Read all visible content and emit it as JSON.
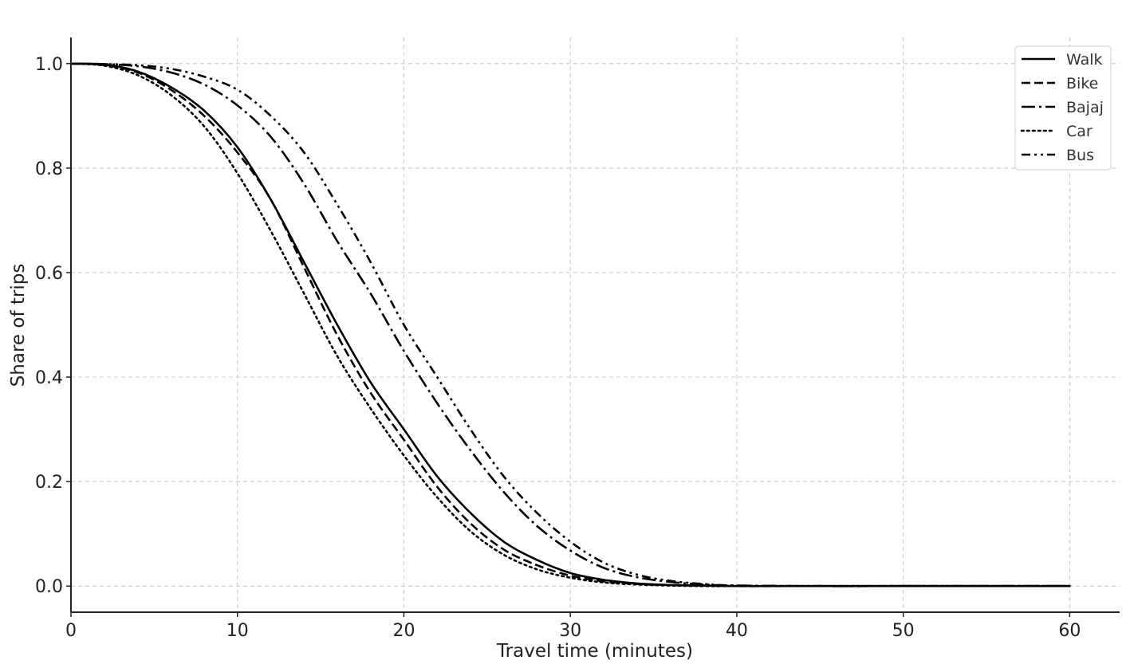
{
  "chart_data": {
    "type": "line",
    "title": "",
    "xlabel": "Travel time (minutes)",
    "ylabel": "Share of trips",
    "xlim": [
      0,
      63
    ],
    "ylim": [
      -0.05,
      1.05
    ],
    "x_ticks": [
      0,
      10,
      20,
      30,
      40,
      50,
      60
    ],
    "y_ticks": [
      0.0,
      0.2,
      0.4,
      0.6,
      0.8,
      1.0
    ],
    "x_tick_labels": [
      "0",
      "10",
      "20",
      "30",
      "40",
      "50",
      "60"
    ],
    "y_tick_labels": [
      "0.0",
      "0.2",
      "0.4",
      "0.6",
      "0.8",
      "1.0"
    ],
    "grid": true,
    "legend_position": "top-right",
    "x": [
      0,
      2,
      4,
      6,
      8,
      10,
      12,
      14,
      16,
      18,
      20,
      22,
      24,
      26,
      28,
      30,
      32,
      34,
      36,
      38,
      40,
      45,
      50,
      55,
      60
    ],
    "series": [
      {
        "name": "Walk",
        "style": "solid",
        "values": [
          1.0,
          0.998,
          0.985,
          0.955,
          0.91,
          0.84,
          0.74,
          0.62,
          0.5,
          0.39,
          0.3,
          0.21,
          0.14,
          0.085,
          0.05,
          0.025,
          0.012,
          0.005,
          0.002,
          0.001,
          0.0,
          0.0,
          0.0,
          0.0,
          0.0
        ]
      },
      {
        "name": "Bike",
        "style": "dashed",
        "values": [
          1.0,
          0.997,
          0.983,
          0.95,
          0.9,
          0.83,
          0.74,
          0.61,
          0.48,
          0.37,
          0.28,
          0.19,
          0.12,
          0.07,
          0.04,
          0.02,
          0.009,
          0.004,
          0.002,
          0.001,
          0.0,
          0.0,
          0.0,
          0.0,
          0.0
        ]
      },
      {
        "name": "Bajaj",
        "style": "dashdot",
        "values": [
          1.0,
          0.999,
          0.995,
          0.983,
          0.96,
          0.92,
          0.86,
          0.77,
          0.66,
          0.56,
          0.45,
          0.35,
          0.26,
          0.18,
          0.115,
          0.068,
          0.035,
          0.017,
          0.008,
          0.003,
          0.001,
          0.0,
          0.0,
          0.0,
          0.0
        ]
      },
      {
        "name": "Car",
        "style": "dotted",
        "values": [
          1.0,
          0.996,
          0.978,
          0.94,
          0.88,
          0.79,
          0.68,
          0.56,
          0.44,
          0.34,
          0.25,
          0.17,
          0.105,
          0.06,
          0.032,
          0.016,
          0.007,
          0.003,
          0.001,
          0.0,
          0.0,
          0.0,
          0.0,
          0.0,
          0.0
        ]
      },
      {
        "name": "Bus",
        "style": "dashdotdot",
        "values": [
          1.0,
          0.999,
          0.997,
          0.99,
          0.975,
          0.95,
          0.9,
          0.83,
          0.73,
          0.62,
          0.5,
          0.4,
          0.3,
          0.21,
          0.14,
          0.085,
          0.045,
          0.022,
          0.01,
          0.004,
          0.001,
          0.0,
          0.0,
          0.0,
          0.0
        ]
      }
    ]
  }
}
